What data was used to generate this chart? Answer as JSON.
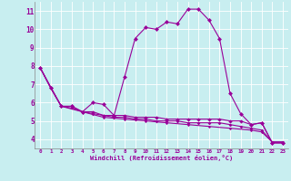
{
  "xlabel": "Windchill (Refroidissement éolien,°C)",
  "bg_color": "#c8eef0",
  "line_color": "#990099",
  "grid_color": "#ffffff",
  "xlim": [
    -0.5,
    23.5
  ],
  "ylim": [
    3.5,
    11.5
  ],
  "yticks": [
    4,
    5,
    6,
    7,
    8,
    9,
    10,
    11
  ],
  "xticks": [
    0,
    1,
    2,
    3,
    4,
    5,
    6,
    7,
    8,
    9,
    10,
    11,
    12,
    13,
    14,
    15,
    16,
    17,
    18,
    19,
    20,
    21,
    22,
    23
  ],
  "series1": [
    [
      0,
      7.9
    ],
    [
      1,
      6.8
    ],
    [
      2,
      5.8
    ],
    [
      3,
      5.8
    ],
    [
      4,
      5.5
    ],
    [
      5,
      6.0
    ],
    [
      6,
      5.9
    ],
    [
      7,
      5.3
    ],
    [
      8,
      7.4
    ],
    [
      9,
      9.5
    ],
    [
      10,
      10.1
    ],
    [
      11,
      10.0
    ],
    [
      12,
      10.4
    ],
    [
      13,
      10.3
    ],
    [
      14,
      11.1
    ],
    [
      15,
      11.1
    ],
    [
      16,
      10.5
    ],
    [
      17,
      9.5
    ],
    [
      18,
      6.5
    ],
    [
      19,
      5.4
    ],
    [
      20,
      4.8
    ],
    [
      21,
      4.9
    ],
    [
      22,
      3.8
    ],
    [
      23,
      3.8
    ]
  ],
  "series2": [
    [
      0,
      7.9
    ],
    [
      1,
      6.8
    ],
    [
      2,
      5.8
    ],
    [
      3,
      5.8
    ],
    [
      4,
      5.5
    ],
    [
      5,
      5.5
    ],
    [
      6,
      5.3
    ],
    [
      7,
      5.3
    ],
    [
      8,
      5.3
    ],
    [
      9,
      5.2
    ],
    [
      10,
      5.2
    ],
    [
      11,
      5.2
    ],
    [
      12,
      5.1
    ],
    [
      13,
      5.1
    ],
    [
      14,
      5.1
    ],
    [
      15,
      5.1
    ],
    [
      16,
      5.1
    ],
    [
      17,
      5.1
    ],
    [
      18,
      5.0
    ],
    [
      19,
      5.0
    ],
    [
      20,
      4.8
    ],
    [
      21,
      4.9
    ],
    [
      22,
      3.8
    ],
    [
      23,
      3.8
    ]
  ],
  "series3": [
    [
      0,
      7.9
    ],
    [
      1,
      6.8
    ],
    [
      2,
      5.8
    ],
    [
      3,
      5.7
    ],
    [
      4,
      5.5
    ],
    [
      5,
      5.4
    ],
    [
      6,
      5.3
    ],
    [
      7,
      5.2
    ],
    [
      8,
      5.2
    ],
    [
      9,
      5.1
    ],
    [
      10,
      5.1
    ],
    [
      11,
      5.0
    ],
    [
      12,
      5.0
    ],
    [
      13,
      5.0
    ],
    [
      14,
      4.9
    ],
    [
      15,
      4.9
    ],
    [
      16,
      4.9
    ],
    [
      17,
      4.9
    ],
    [
      18,
      4.8
    ],
    [
      19,
      4.7
    ],
    [
      20,
      4.6
    ],
    [
      21,
      4.5
    ],
    [
      22,
      3.85
    ],
    [
      23,
      3.85
    ]
  ],
  "series4": [
    [
      0,
      7.9
    ],
    [
      2,
      5.8
    ],
    [
      4,
      5.5
    ],
    [
      6,
      5.2
    ],
    [
      8,
      5.1
    ],
    [
      10,
      5.0
    ],
    [
      12,
      4.9
    ],
    [
      14,
      4.8
    ],
    [
      16,
      4.7
    ],
    [
      18,
      4.6
    ],
    [
      20,
      4.5
    ],
    [
      21,
      4.4
    ],
    [
      22,
      3.85
    ],
    [
      23,
      3.85
    ]
  ]
}
